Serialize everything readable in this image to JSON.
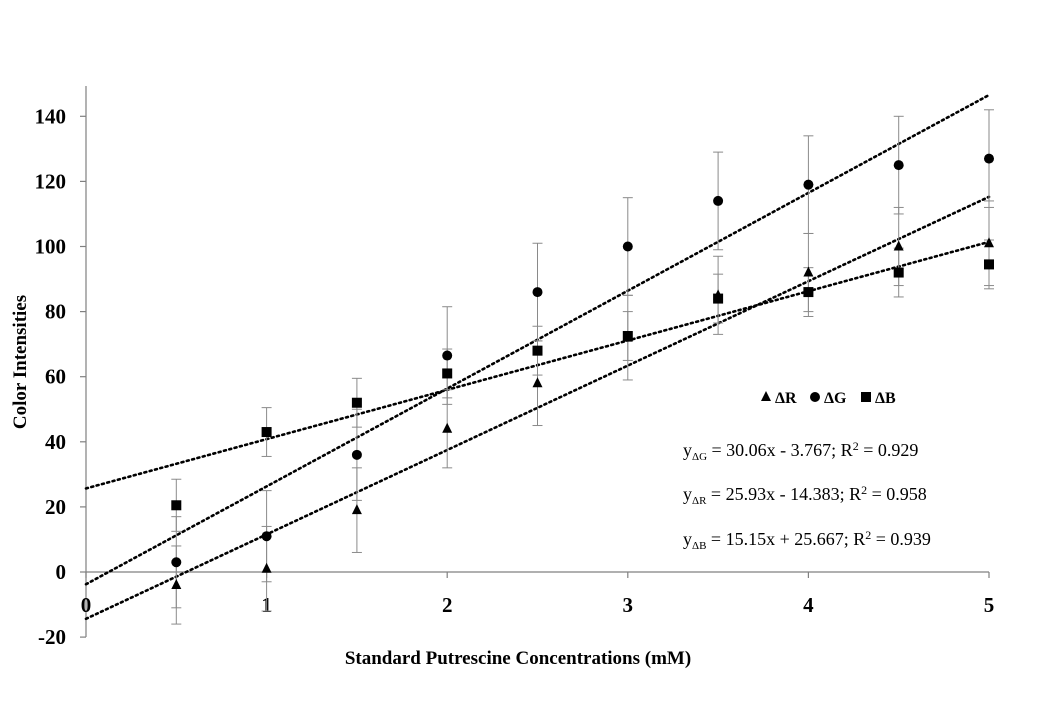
{
  "chart_data": {
    "type": "scatter",
    "title": "",
    "xlabel": "Standard Putrescine Concentrations (mM)",
    "ylabel": "Color Intensities",
    "xlim": [
      0,
      5
    ],
    "ylim": [
      -20,
      150
    ],
    "xticks": [
      "0",
      "1",
      "2",
      "3",
      "4",
      "5"
    ],
    "yticks": [
      "-20",
      "0",
      "20",
      "40",
      "60",
      "80",
      "100",
      "120",
      "140"
    ],
    "x": [
      0.5,
      1,
      1.5,
      2,
      2.5,
      3,
      3.5,
      4,
      4.5,
      5
    ],
    "series": [
      {
        "name": "ΔR",
        "symbol": "ΔR",
        "marker": "triangle",
        "values": [
          -4,
          1,
          19,
          44,
          58,
          72,
          85,
          92,
          100,
          101
        ],
        "errors": [
          12,
          13,
          13,
          12,
          13,
          13,
          12,
          12,
          12,
          13
        ],
        "fit": {
          "slope": 25.93,
          "intercept": -14.383
        }
      },
      {
        "name": "ΔG",
        "symbol": "ΔG",
        "marker": "circle",
        "values": [
          3,
          11,
          36,
          66.5,
          86,
          100,
          114,
          119,
          125,
          127
        ],
        "errors": [
          14,
          14,
          14,
          15,
          15,
          15,
          15,
          15,
          15,
          15
        ],
        "fit": {
          "slope": 30.06,
          "intercept": -3.767
        }
      },
      {
        "name": "ΔB",
        "symbol": "ΔB",
        "marker": "square",
        "values": [
          20.5,
          43,
          52,
          61,
          68,
          72.5,
          84,
          86,
          92,
          94.5
        ],
        "errors": [
          8,
          7.5,
          7.5,
          7.5,
          7.5,
          7.5,
          7.5,
          7.5,
          7.5,
          7.5
        ],
        "fit": {
          "slope": 15.15,
          "intercept": 25.667
        }
      }
    ],
    "legend_position": "right",
    "annotations": [
      {
        "y": "y",
        "sub": "ΔG",
        "text": " = 30.06x - 3.767; R",
        "sup": "2",
        "tail": " = 0.929"
      },
      {
        "y": "y",
        "sub": "ΔR",
        "text": " = 25.93x - 14.383; R",
        "sup": "2",
        "tail": " = 0.958"
      },
      {
        "y": "y",
        "sub": "ΔB",
        "text": " = 15.15x + 25.667; R",
        "sup": "2",
        "tail": " = 0.939"
      }
    ]
  }
}
